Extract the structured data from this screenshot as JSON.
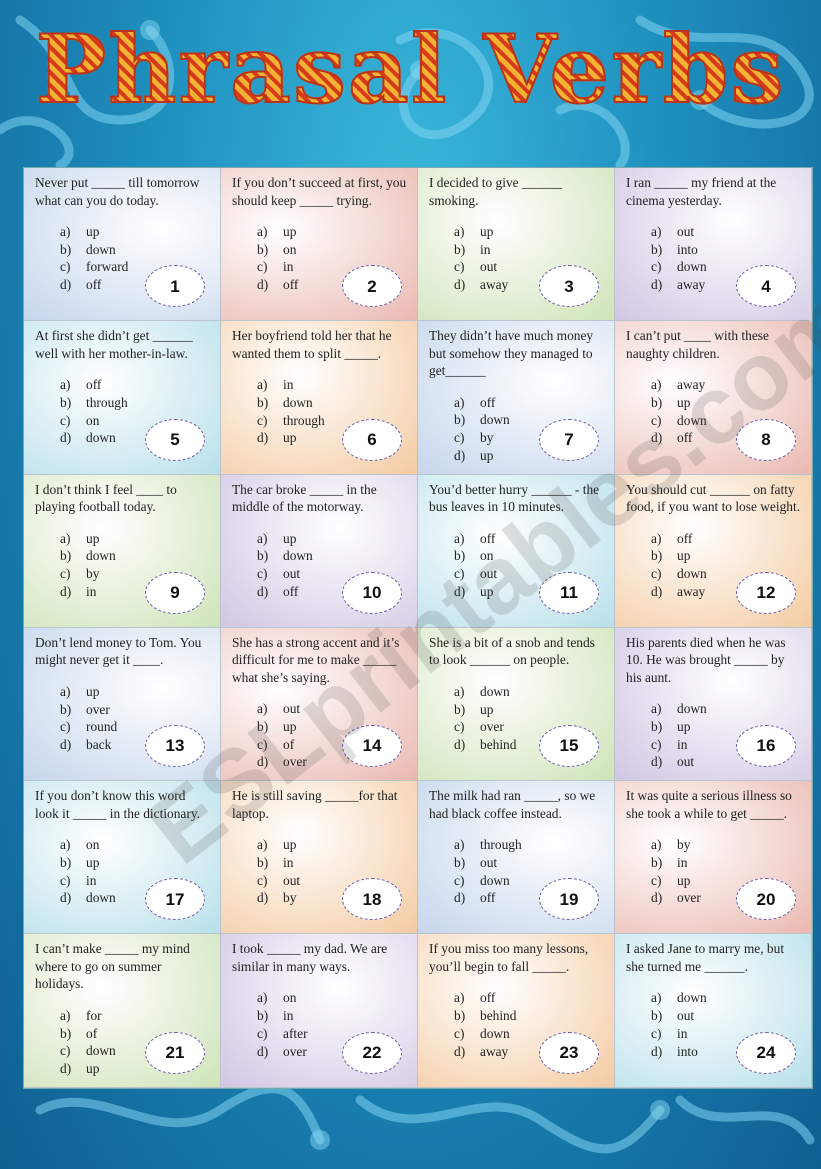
{
  "title": "Phrasal Verbs",
  "watermark": "ESLprintables.com",
  "questions": [
    {
      "num": "1",
      "text": "Never put _____ till tomorrow what can you do today.",
      "options": [
        [
          "a)",
          "up"
        ],
        [
          "b)",
          "down"
        ],
        [
          "c)",
          "forward"
        ],
        [
          "d)",
          "off"
        ]
      ],
      "color": "blue"
    },
    {
      "num": "2",
      "text": "If you don’t succeed at first, you should keep _____ trying.",
      "options": [
        [
          "a)",
          "up"
        ],
        [
          "b)",
          "on"
        ],
        [
          "c)",
          "in"
        ],
        [
          "d)",
          "off"
        ]
      ],
      "color": "red"
    },
    {
      "num": "3",
      "text": "I decided to give ______ smoking.",
      "options": [
        [
          "a)",
          "up"
        ],
        [
          "b)",
          "in"
        ],
        [
          "c)",
          "out"
        ],
        [
          "d)",
          "away"
        ]
      ],
      "color": "green"
    },
    {
      "num": "4",
      "text": "I ran _____ my friend at the cinema yesterday.",
      "options": [
        [
          "a)",
          "out"
        ],
        [
          "b)",
          "into"
        ],
        [
          "c)",
          "down"
        ],
        [
          "d)",
          "away"
        ]
      ],
      "color": "purple"
    },
    {
      "num": "5",
      "text": "At first she didn’t get ______ well with her mother-in-law.",
      "options": [
        [
          "a)",
          "off"
        ],
        [
          "b)",
          "through"
        ],
        [
          "c)",
          "on"
        ],
        [
          "d)",
          "down"
        ]
      ],
      "color": "cyan"
    },
    {
      "num": "6",
      "text": "Her boyfriend told her that he wanted them to split _____.",
      "options": [
        [
          "a)",
          "in"
        ],
        [
          "b)",
          "down"
        ],
        [
          "c)",
          "through"
        ],
        [
          "d)",
          "up"
        ]
      ],
      "color": "orange"
    },
    {
      "num": "7",
      "text": "They didn’t have much money but somehow they managed to get______",
      "options": [
        [
          "a)",
          "off"
        ],
        [
          "b)",
          "down"
        ],
        [
          "c)",
          "by"
        ],
        [
          "d)",
          "up"
        ]
      ],
      "color": "blue"
    },
    {
      "num": "8",
      "text": "I can’t put ____ with these naughty children.",
      "options": [
        [
          "a)",
          "away"
        ],
        [
          "b)",
          "up"
        ],
        [
          "c)",
          "down"
        ],
        [
          "d)",
          "off"
        ]
      ],
      "color": "red"
    },
    {
      "num": "9",
      "text": "I don’t think I feel ____ to playing football today.",
      "options": [
        [
          "a)",
          "up"
        ],
        [
          "b)",
          "down"
        ],
        [
          "c)",
          "by"
        ],
        [
          "d)",
          "in"
        ]
      ],
      "color": "green"
    },
    {
      "num": "10",
      "text": "The car broke _____ in the middle of the motorway.",
      "options": [
        [
          "a)",
          "up"
        ],
        [
          "b)",
          "down"
        ],
        [
          "c)",
          "out"
        ],
        [
          "d)",
          "off"
        ]
      ],
      "color": "purple"
    },
    {
      "num": "11",
      "text": "You’d better hurry ______ - the bus leaves in 10 minutes.",
      "options": [
        [
          "a)",
          "off"
        ],
        [
          "b)",
          "on"
        ],
        [
          "c)",
          "out"
        ],
        [
          "d)",
          "up"
        ]
      ],
      "color": "cyan"
    },
    {
      "num": "12",
      "text": "You should cut ______ on fatty food, if you want to lose weight.",
      "options": [
        [
          "a)",
          "off"
        ],
        [
          "b)",
          "up"
        ],
        [
          "c)",
          "down"
        ],
        [
          "d)",
          "away"
        ]
      ],
      "color": "orange"
    },
    {
      "num": "13",
      "text": "Don’t lend money to Tom. You might never get it ____.",
      "options": [
        [
          "a)",
          "up"
        ],
        [
          "b)",
          "over"
        ],
        [
          "c)",
          "round"
        ],
        [
          "d)",
          "back"
        ]
      ],
      "color": "blue"
    },
    {
      "num": "14",
      "text": "She has a strong accent and it’s difficult for me to make _____ what she’s saying.",
      "options": [
        [
          "a)",
          "out"
        ],
        [
          "b)",
          "up"
        ],
        [
          "c)",
          "of"
        ],
        [
          "d)",
          "over"
        ]
      ],
      "color": "red"
    },
    {
      "num": "15",
      "text": "She is a bit of a snob and tends to look ______ on people.",
      "options": [
        [
          "a)",
          "down"
        ],
        [
          "b)",
          "up"
        ],
        [
          "c)",
          "over"
        ],
        [
          "d)",
          "behind"
        ]
      ],
      "color": "green"
    },
    {
      "num": "16",
      "text": "His parents died when he was 10. He was brought _____ by his aunt.",
      "options": [
        [
          "a)",
          "down"
        ],
        [
          "b)",
          "up"
        ],
        [
          "c)",
          "in"
        ],
        [
          "d)",
          "out"
        ]
      ],
      "color": "purple"
    },
    {
      "num": "17",
      "text": "If you don’t know this word look it _____ in the dictionary.",
      "options": [
        [
          "a)",
          "on"
        ],
        [
          "b)",
          "up"
        ],
        [
          "c)",
          "in"
        ],
        [
          "d)",
          "down"
        ]
      ],
      "color": "cyan"
    },
    {
      "num": "18",
      "text": "He is still saving _____for that laptop.",
      "options": [
        [
          "a)",
          "up"
        ],
        [
          "b)",
          "in"
        ],
        [
          "c)",
          "out"
        ],
        [
          "d)",
          "by"
        ]
      ],
      "color": "orange"
    },
    {
      "num": "19",
      "text": "The milk had ran _____, so we had black coffee instead.",
      "options": [
        [
          "a)",
          "through"
        ],
        [
          "b)",
          "out"
        ],
        [
          "c)",
          "down"
        ],
        [
          "d)",
          "off"
        ]
      ],
      "color": "blue"
    },
    {
      "num": "20",
      "text": "It was quite a serious illness so she took a while to get _____.",
      "options": [
        [
          "a)",
          "by"
        ],
        [
          "b)",
          "in"
        ],
        [
          "c)",
          "up"
        ],
        [
          "d)",
          "over"
        ]
      ],
      "color": "red"
    },
    {
      "num": "21",
      "text": "I can’t make _____ my mind where to go on summer holidays.",
      "options": [
        [
          "a)",
          "for"
        ],
        [
          "b)",
          "of"
        ],
        [
          "c)",
          "down"
        ],
        [
          "d)",
          "up"
        ]
      ],
      "color": "green"
    },
    {
      "num": "22",
      "text": "I took _____ my dad. We are similar in many ways.",
      "options": [
        [
          "a)",
          "on"
        ],
        [
          "b)",
          "in"
        ],
        [
          "c)",
          "after"
        ],
        [
          "d)",
          "over"
        ]
      ],
      "color": "purple"
    },
    {
      "num": "23",
      "text": "If you miss too many lessons, you’ll begin to fall _____.",
      "options": [
        [
          "a)",
          "off"
        ],
        [
          "b)",
          "behind"
        ],
        [
          "c)",
          "down"
        ],
        [
          "d)",
          "away"
        ]
      ],
      "color": "orange"
    },
    {
      "num": "24",
      "text": "I asked Jane to marry me, but she turned me ______.",
      "options": [
        [
          "a)",
          "down"
        ],
        [
          "b)",
          "out"
        ],
        [
          "c)",
          "in"
        ],
        [
          "d)",
          "into"
        ]
      ],
      "color": "cyan"
    }
  ]
}
